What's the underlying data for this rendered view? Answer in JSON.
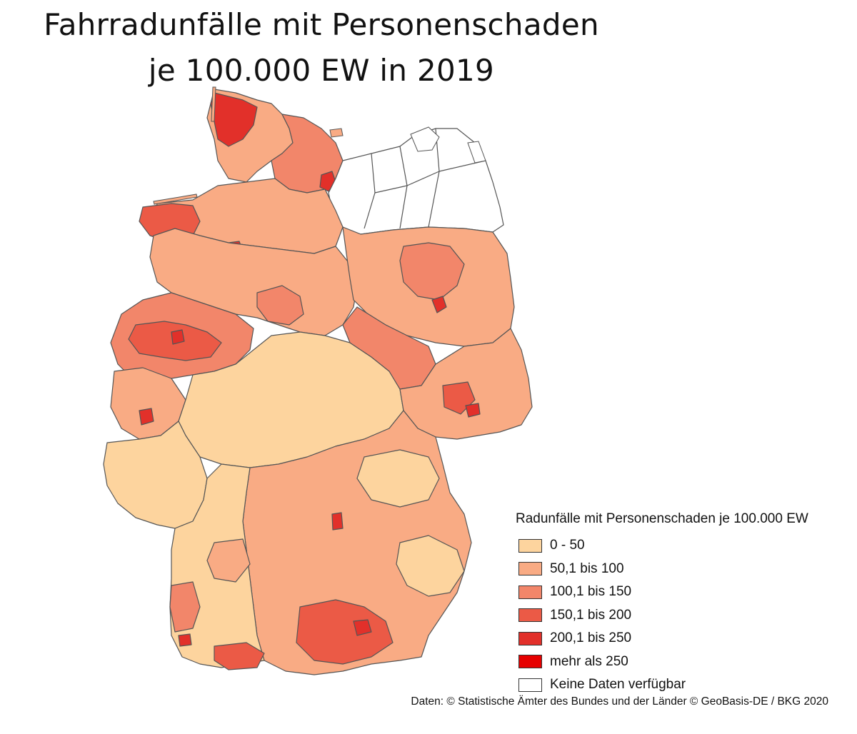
{
  "title": {
    "line1": "Fahrradunfälle mit Personenschaden",
    "line2": "je 100.000 EW in 2019"
  },
  "legend": {
    "title": "Radunfälle mit Personenschaden je 100.000 EW",
    "items": [
      {
        "label": "0 - 50",
        "color": "#fdd49e"
      },
      {
        "label": "50,1 bis 100",
        "color": "#f9ab84"
      },
      {
        "label": "100,1 bis 150",
        "color": "#f2866a"
      },
      {
        "label": "150,1 bis 200",
        "color": "#eb5a46"
      },
      {
        "label": "200,1 bis 250",
        "color": "#e2302a"
      },
      {
        "label": "mehr als 250",
        "color": "#e60000"
      },
      {
        "label": "Keine Daten verfügbar",
        "color": "#ffffff"
      }
    ]
  },
  "source": "Daten: © Statistische Ämter des Bundes und der Länder © GeoBasis-DE / BKG 2020"
}
